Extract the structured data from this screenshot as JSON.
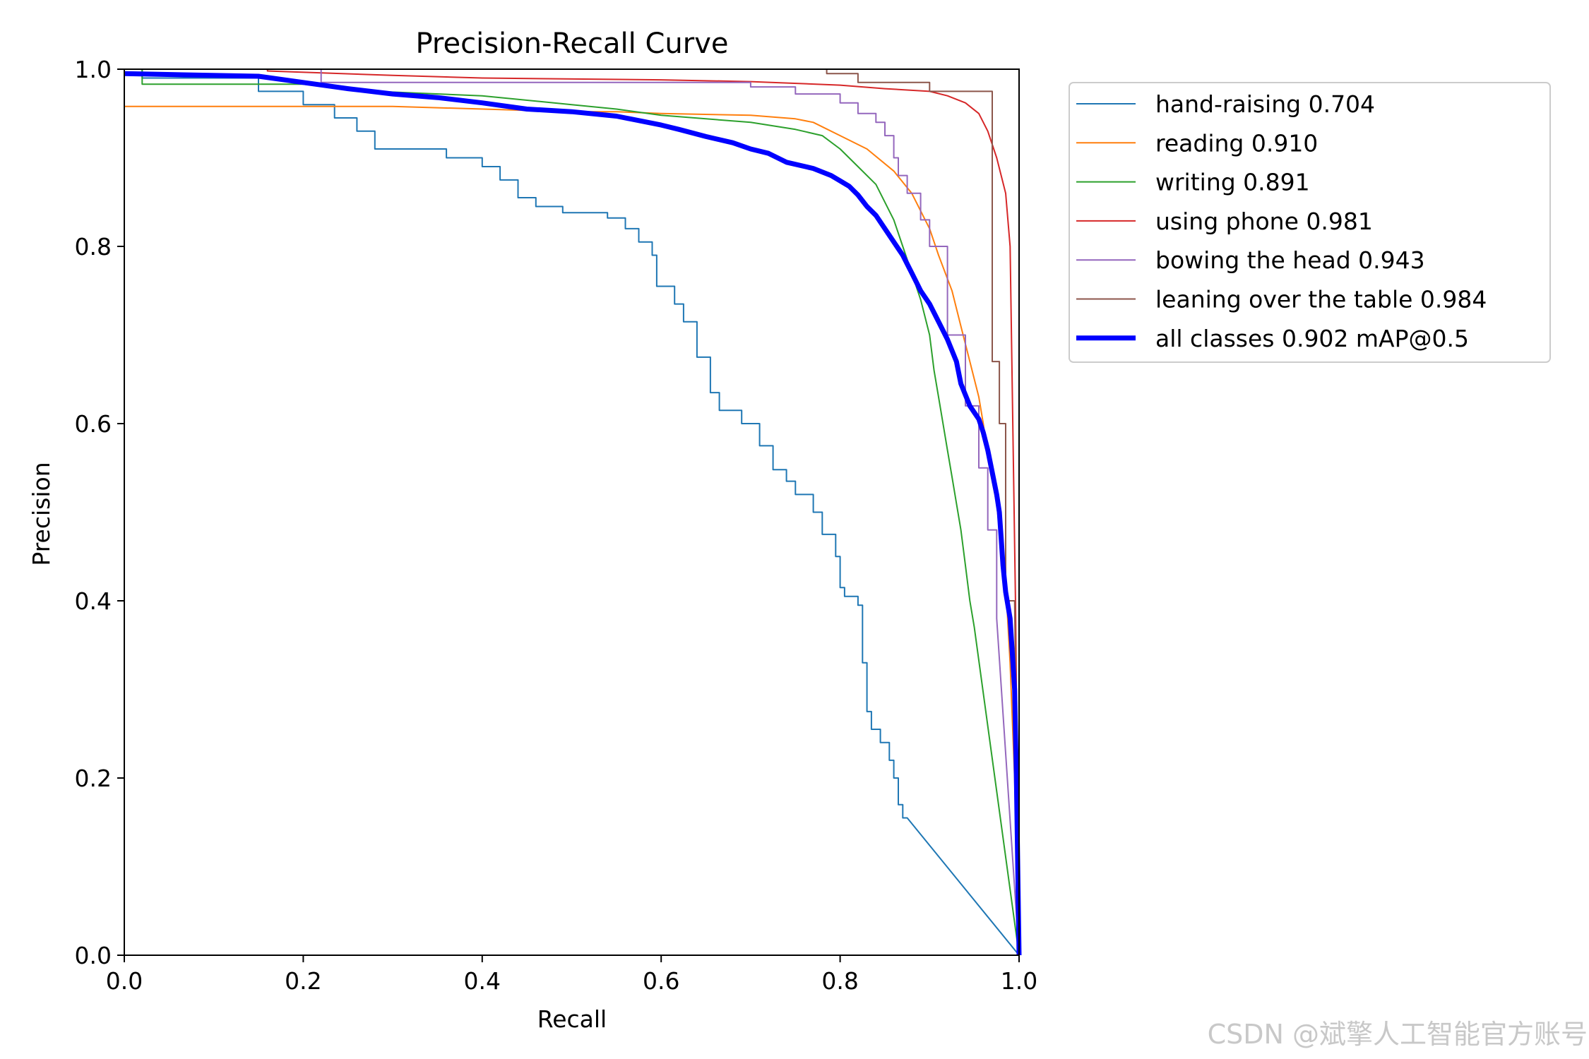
{
  "chart_data": {
    "type": "line",
    "title": "Precision-Recall Curve",
    "xlabel": "Recall",
    "ylabel": "Precision",
    "xlim": [
      0.0,
      1.0
    ],
    "ylim": [
      0.0,
      1.0
    ],
    "xticks": [
      "0.0",
      "0.2",
      "0.4",
      "0.6",
      "0.8",
      "1.0"
    ],
    "yticks": [
      "0.0",
      "0.2",
      "0.4",
      "0.6",
      "0.8",
      "1.0"
    ],
    "grid": false,
    "legend_position": "outside-right-top",
    "series": [
      {
        "name": "hand-raising 0.704",
        "color": "#1f77b4",
        "width": 2,
        "points": [
          [
            0,
            1.0
          ],
          [
            0.02,
            1.0
          ],
          [
            0.02,
            0.99
          ],
          [
            0.15,
            0.99
          ],
          [
            0.15,
            0.975
          ],
          [
            0.2,
            0.975
          ],
          [
            0.2,
            0.96
          ],
          [
            0.235,
            0.96
          ],
          [
            0.235,
            0.945
          ],
          [
            0.26,
            0.945
          ],
          [
            0.26,
            0.93
          ],
          [
            0.28,
            0.93
          ],
          [
            0.28,
            0.91
          ],
          [
            0.36,
            0.91
          ],
          [
            0.36,
            0.9
          ],
          [
            0.4,
            0.9
          ],
          [
            0.4,
            0.89
          ],
          [
            0.42,
            0.89
          ],
          [
            0.42,
            0.875
          ],
          [
            0.44,
            0.875
          ],
          [
            0.44,
            0.855
          ],
          [
            0.46,
            0.855
          ],
          [
            0.46,
            0.845
          ],
          [
            0.49,
            0.845
          ],
          [
            0.49,
            0.838
          ],
          [
            0.54,
            0.838
          ],
          [
            0.54,
            0.832
          ],
          [
            0.56,
            0.832
          ],
          [
            0.56,
            0.82
          ],
          [
            0.575,
            0.82
          ],
          [
            0.575,
            0.805
          ],
          [
            0.59,
            0.805
          ],
          [
            0.59,
            0.79
          ],
          [
            0.595,
            0.79
          ],
          [
            0.595,
            0.755
          ],
          [
            0.615,
            0.755
          ],
          [
            0.615,
            0.735
          ],
          [
            0.625,
            0.735
          ],
          [
            0.625,
            0.715
          ],
          [
            0.64,
            0.715
          ],
          [
            0.64,
            0.675
          ],
          [
            0.655,
            0.675
          ],
          [
            0.655,
            0.635
          ],
          [
            0.665,
            0.635
          ],
          [
            0.665,
            0.615
          ],
          [
            0.69,
            0.615
          ],
          [
            0.69,
            0.6
          ],
          [
            0.71,
            0.6
          ],
          [
            0.71,
            0.575
          ],
          [
            0.725,
            0.575
          ],
          [
            0.725,
            0.548
          ],
          [
            0.74,
            0.548
          ],
          [
            0.74,
            0.535
          ],
          [
            0.75,
            0.535
          ],
          [
            0.75,
            0.52
          ],
          [
            0.77,
            0.52
          ],
          [
            0.77,
            0.5
          ],
          [
            0.78,
            0.5
          ],
          [
            0.78,
            0.475
          ],
          [
            0.795,
            0.475
          ],
          [
            0.795,
            0.45
          ],
          [
            0.8,
            0.45
          ],
          [
            0.8,
            0.415
          ],
          [
            0.805,
            0.415
          ],
          [
            0.805,
            0.405
          ],
          [
            0.82,
            0.405
          ],
          [
            0.82,
            0.395
          ],
          [
            0.825,
            0.395
          ],
          [
            0.825,
            0.33
          ],
          [
            0.83,
            0.33
          ],
          [
            0.83,
            0.275
          ],
          [
            0.835,
            0.275
          ],
          [
            0.835,
            0.255
          ],
          [
            0.845,
            0.255
          ],
          [
            0.845,
            0.24
          ],
          [
            0.855,
            0.24
          ],
          [
            0.855,
            0.22
          ],
          [
            0.86,
            0.22
          ],
          [
            0.86,
            0.2
          ],
          [
            0.865,
            0.2
          ],
          [
            0.865,
            0.17
          ],
          [
            0.87,
            0.17
          ],
          [
            0.87,
            0.155
          ],
          [
            0.875,
            0.155
          ],
          [
            1.0,
            0.0
          ]
        ]
      },
      {
        "name": "reading 0.910",
        "color": "#ff7f0e",
        "width": 2,
        "points": [
          [
            0,
            1.0
          ],
          [
            0,
            0.958
          ],
          [
            0.3,
            0.958
          ],
          [
            0.5,
            0.952
          ],
          [
            0.55,
            0.952
          ],
          [
            0.6,
            0.95
          ],
          [
            0.7,
            0.948
          ],
          [
            0.75,
            0.944
          ],
          [
            0.77,
            0.94
          ],
          [
            0.8,
            0.925
          ],
          [
            0.83,
            0.91
          ],
          [
            0.86,
            0.885
          ],
          [
            0.88,
            0.86
          ],
          [
            0.9,
            0.82
          ],
          [
            0.91,
            0.79
          ],
          [
            0.925,
            0.75
          ],
          [
            0.935,
            0.71
          ],
          [
            0.945,
            0.67
          ],
          [
            0.955,
            0.63
          ],
          [
            0.96,
            0.6
          ],
          [
            0.965,
            0.56
          ],
          [
            0.975,
            0.51
          ],
          [
            0.98,
            0.46
          ],
          [
            0.985,
            0.42
          ],
          [
            0.99,
            0.33
          ],
          [
            0.995,
            0.2
          ],
          [
            1.0,
            0.0
          ]
        ]
      },
      {
        "name": "writing 0.891",
        "color": "#2ca02c",
        "width": 2,
        "points": [
          [
            0,
            1.0
          ],
          [
            0.02,
            1.0
          ],
          [
            0.02,
            0.983
          ],
          [
            0.2,
            0.983
          ],
          [
            0.28,
            0.975
          ],
          [
            0.4,
            0.97
          ],
          [
            0.5,
            0.96
          ],
          [
            0.55,
            0.955
          ],
          [
            0.6,
            0.948
          ],
          [
            0.65,
            0.944
          ],
          [
            0.7,
            0.94
          ],
          [
            0.75,
            0.932
          ],
          [
            0.78,
            0.925
          ],
          [
            0.8,
            0.91
          ],
          [
            0.82,
            0.89
          ],
          [
            0.84,
            0.87
          ],
          [
            0.86,
            0.83
          ],
          [
            0.87,
            0.8
          ],
          [
            0.88,
            0.77
          ],
          [
            0.89,
            0.74
          ],
          [
            0.9,
            0.7
          ],
          [
            0.905,
            0.66
          ],
          [
            0.91,
            0.63
          ],
          [
            0.915,
            0.6
          ],
          [
            0.92,
            0.57
          ],
          [
            0.925,
            0.54
          ],
          [
            0.93,
            0.51
          ],
          [
            0.935,
            0.48
          ],
          [
            0.94,
            0.44
          ],
          [
            0.945,
            0.4
          ],
          [
            0.95,
            0.37
          ],
          [
            1.0,
            0.0
          ]
        ]
      },
      {
        "name": "using phone 0.981",
        "color": "#d62728",
        "width": 2,
        "points": [
          [
            0,
            1.0
          ],
          [
            0.16,
            1.0
          ],
          [
            0.16,
            0.998
          ],
          [
            0.3,
            0.993
          ],
          [
            0.4,
            0.99
          ],
          [
            0.6,
            0.988
          ],
          [
            0.7,
            0.986
          ],
          [
            0.8,
            0.982
          ],
          [
            0.85,
            0.978
          ],
          [
            0.9,
            0.975
          ],
          [
            0.92,
            0.97
          ],
          [
            0.94,
            0.962
          ],
          [
            0.955,
            0.95
          ],
          [
            0.965,
            0.93
          ],
          [
            0.975,
            0.9
          ],
          [
            0.985,
            0.86
          ],
          [
            0.99,
            0.8
          ],
          [
            0.993,
            0.6
          ],
          [
            0.996,
            0.4
          ],
          [
            1.0,
            0.0
          ]
        ]
      },
      {
        "name": "bowing the head 0.943",
        "color": "#9467bd",
        "width": 2,
        "points": [
          [
            0,
            1.0
          ],
          [
            0.22,
            1.0
          ],
          [
            0.22,
            0.985
          ],
          [
            0.5,
            0.985
          ],
          [
            0.7,
            0.985
          ],
          [
            0.7,
            0.98
          ],
          [
            0.75,
            0.98
          ],
          [
            0.75,
            0.972
          ],
          [
            0.8,
            0.972
          ],
          [
            0.8,
            0.962
          ],
          [
            0.82,
            0.962
          ],
          [
            0.82,
            0.95
          ],
          [
            0.84,
            0.95
          ],
          [
            0.84,
            0.94
          ],
          [
            0.85,
            0.94
          ],
          [
            0.85,
            0.925
          ],
          [
            0.86,
            0.925
          ],
          [
            0.86,
            0.9
          ],
          [
            0.865,
            0.9
          ],
          [
            0.865,
            0.88
          ],
          [
            0.875,
            0.88
          ],
          [
            0.875,
            0.86
          ],
          [
            0.89,
            0.86
          ],
          [
            0.89,
            0.83
          ],
          [
            0.9,
            0.83
          ],
          [
            0.9,
            0.8
          ],
          [
            0.92,
            0.8
          ],
          [
            0.92,
            0.7
          ],
          [
            0.94,
            0.7
          ],
          [
            0.94,
            0.62
          ],
          [
            0.955,
            0.62
          ],
          [
            0.955,
            0.55
          ],
          [
            0.965,
            0.55
          ],
          [
            0.965,
            0.48
          ],
          [
            0.975,
            0.48
          ],
          [
            0.975,
            0.38
          ],
          [
            1.0,
            0.0
          ]
        ]
      },
      {
        "name": "leaning over the table 0.984",
        "color": "#8c564b",
        "width": 2,
        "points": [
          [
            0,
            1.0
          ],
          [
            0.785,
            1.0
          ],
          [
            0.785,
            0.995
          ],
          [
            0.82,
            0.995
          ],
          [
            0.82,
            0.985
          ],
          [
            0.9,
            0.985
          ],
          [
            0.9,
            0.975
          ],
          [
            0.97,
            0.975
          ],
          [
            0.97,
            0.67
          ],
          [
            0.978,
            0.67
          ],
          [
            0.978,
            0.6
          ],
          [
            0.985,
            0.6
          ],
          [
            0.985,
            0.4
          ],
          [
            0.995,
            0.4
          ],
          [
            1.0,
            0.0
          ]
        ]
      },
      {
        "name": "all classes 0.902 mAP@0.5",
        "color": "#0000ff",
        "width": 7,
        "points": [
          [
            0,
            0.995
          ],
          [
            0.15,
            0.992
          ],
          [
            0.2,
            0.985
          ],
          [
            0.25,
            0.978
          ],
          [
            0.3,
            0.972
          ],
          [
            0.35,
            0.968
          ],
          [
            0.4,
            0.962
          ],
          [
            0.45,
            0.955
          ],
          [
            0.5,
            0.952
          ],
          [
            0.55,
            0.947
          ],
          [
            0.6,
            0.937
          ],
          [
            0.62,
            0.932
          ],
          [
            0.65,
            0.924
          ],
          [
            0.68,
            0.917
          ],
          [
            0.7,
            0.91
          ],
          [
            0.72,
            0.905
          ],
          [
            0.74,
            0.895
          ],
          [
            0.77,
            0.888
          ],
          [
            0.79,
            0.88
          ],
          [
            0.81,
            0.868
          ],
          [
            0.82,
            0.858
          ],
          [
            0.83,
            0.845
          ],
          [
            0.84,
            0.835
          ],
          [
            0.85,
            0.82
          ],
          [
            0.86,
            0.805
          ],
          [
            0.87,
            0.79
          ],
          [
            0.88,
            0.77
          ],
          [
            0.89,
            0.75
          ],
          [
            0.9,
            0.735
          ],
          [
            0.91,
            0.715
          ],
          [
            0.92,
            0.695
          ],
          [
            0.93,
            0.67
          ],
          [
            0.935,
            0.645
          ],
          [
            0.945,
            0.62
          ],
          [
            0.955,
            0.605
          ],
          [
            0.96,
            0.59
          ],
          [
            0.965,
            0.57
          ],
          [
            0.97,
            0.545
          ],
          [
            0.975,
            0.52
          ],
          [
            0.978,
            0.5
          ],
          [
            0.98,
            0.47
          ],
          [
            0.982,
            0.44
          ],
          [
            0.985,
            0.41
          ],
          [
            0.99,
            0.38
          ],
          [
            0.995,
            0.3
          ],
          [
            0.997,
            0.2
          ],
          [
            1.0,
            0.0
          ]
        ]
      }
    ]
  },
  "watermark": "CSDN @斌擎人工智能官方账号"
}
